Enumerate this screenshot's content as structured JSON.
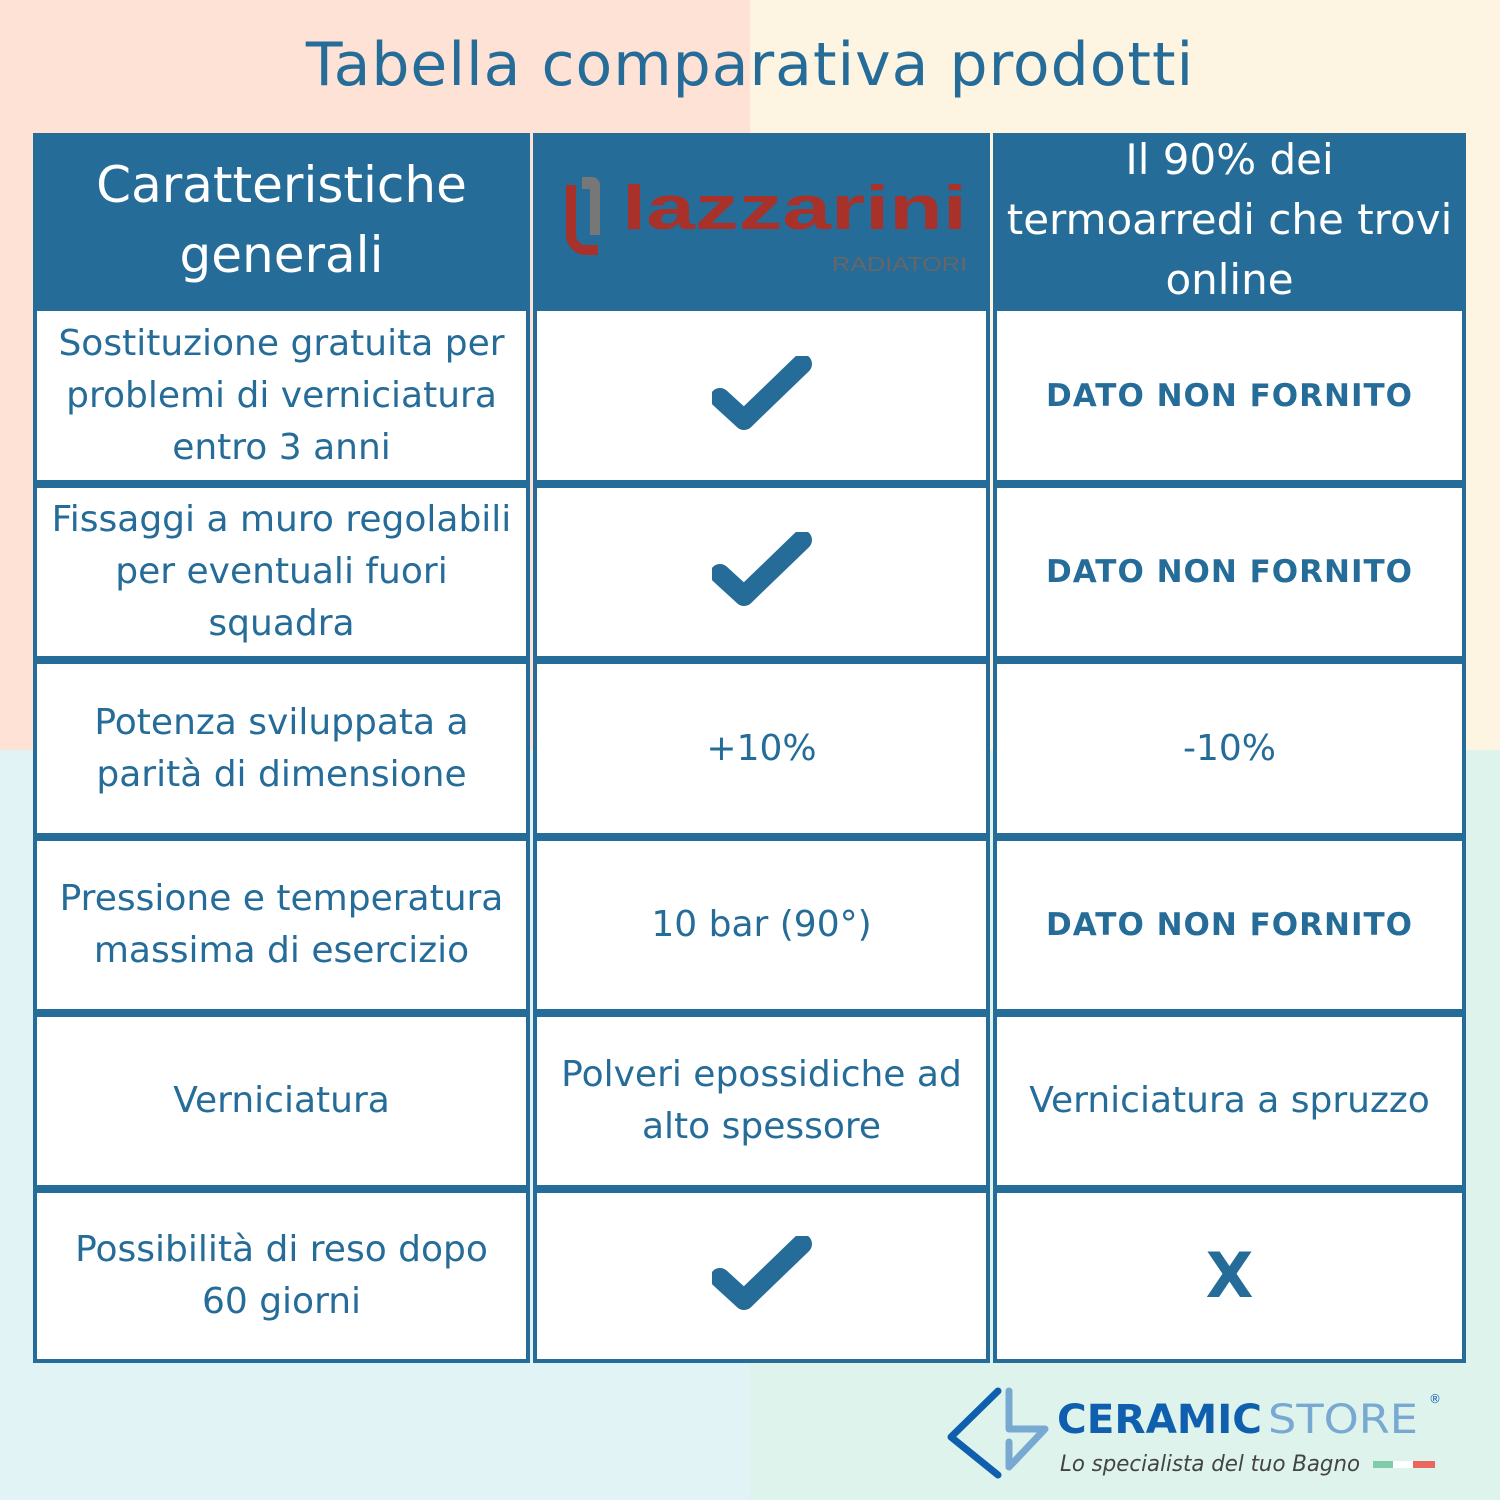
{
  "title": "Tabella comparativa prodotti",
  "header": {
    "col1": "Caratteristiche generali",
    "col2_logo": {
      "name": "lazzarini",
      "sub": "RADIATORI",
      "color": "#a8312a"
    },
    "col3": "Il 90% dei termoarredi che trovi online"
  },
  "rows": [
    {
      "feature": "Sostituzione gratuita per problemi di verniciatura entro 3 anni",
      "lazzarini": "check",
      "others": "DATO NON FORNITO"
    },
    {
      "feature": "Fissaggi a muro regolabili per eventuali fuori squadra",
      "lazzarini": "check",
      "others": "DATO NON FORNITO"
    },
    {
      "feature": "Potenza sviluppata a parità di dimensione",
      "lazzarini": "+10%",
      "others": "-10%"
    },
    {
      "feature": "Pressione e temperatura massima di esercizio",
      "lazzarini": "10 bar (90°)",
      "others": "DATO NON FORNITO"
    },
    {
      "feature": "Verniciatura",
      "lazzarini": "Polveri epossidiche ad alto spessore",
      "others": "Verniciatura a spruzzo"
    },
    {
      "feature": "Possibilità di reso dopo 60 giorni",
      "lazzarini": "check",
      "others": "X"
    }
  ],
  "footer": {
    "brand_a": "CERAMIC",
    "brand_b": "STORE",
    "reg": "®",
    "tagline": "Lo specialista del tuo Bagno"
  },
  "colors": {
    "primary": "#256c99",
    "brand_dark": "#0f5fae",
    "brand_light": "#78a9d2"
  }
}
